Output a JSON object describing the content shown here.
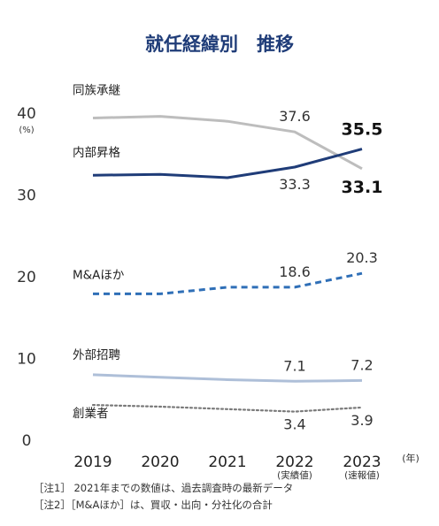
{
  "chart_data": {
    "type": "line",
    "title": "就任経緯別　推移",
    "unit_label": "(%)",
    "x_unit_label": "(年)",
    "categories": [
      "2019",
      "2020",
      "2021",
      "2022",
      "2023"
    ],
    "category_sublabels": [
      "",
      "",
      "",
      "(実績値)",
      "(速報値)"
    ],
    "ylim": [
      0,
      40
    ],
    "yticks": [
      "0",
      "10",
      "20",
      "30",
      "40"
    ],
    "grid": false,
    "series": [
      {
        "name": "同族承継",
        "values": [
          39.3,
          39.5,
          38.9,
          37.6,
          33.1
        ],
        "color": "#bdbdbd",
        "style": "solid",
        "labels": [
          "",
          "",
          "",
          "37.6",
          "33.1"
        ]
      },
      {
        "name": "内部昇格",
        "values": [
          32.3,
          32.4,
          32.0,
          33.3,
          35.5
        ],
        "color": "#1f3c78",
        "style": "solid",
        "labels": [
          "",
          "",
          "",
          "33.3",
          "35.5"
        ]
      },
      {
        "name": "M&Aほか",
        "values": [
          17.8,
          17.8,
          18.6,
          18.6,
          20.3
        ],
        "color": "#2f6fb7",
        "style": "dashed",
        "labels": [
          "",
          "",
          "",
          "18.6",
          "20.3"
        ]
      },
      {
        "name": "外部招聘",
        "values": [
          7.9,
          7.6,
          7.3,
          7.1,
          7.2
        ],
        "color": "#aebfd8",
        "style": "solid",
        "labels": [
          "",
          "",
          "",
          "7.1",
          "7.2"
        ]
      },
      {
        "name": "創業者",
        "values": [
          4.2,
          4.0,
          3.7,
          3.4,
          3.9
        ],
        "color": "#7a7a7a",
        "style": "dotted",
        "labels": [
          "",
          "",
          "",
          "3.4",
          "3.9"
        ]
      }
    ]
  },
  "notes": [
    "［注1］ 2021年までの数値は、過去調査時の最新データ",
    "［注2］［M&Aほか］は、買収・出向・分社化の合計"
  ]
}
